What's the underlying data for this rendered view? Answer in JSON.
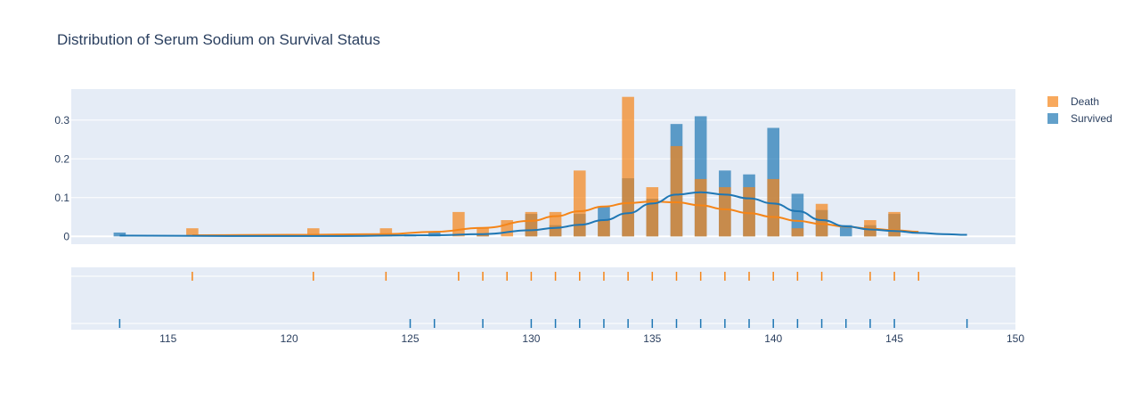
{
  "chart_data": {
    "type": "histogram",
    "title": "Distribution of Serum Sodium on Survival Status",
    "xlabel": "",
    "ylabel": "",
    "xlim": [
      111,
      150
    ],
    "ylim": [
      -0.02,
      0.38
    ],
    "x_ticks": [
      115,
      120,
      125,
      130,
      135,
      140,
      145,
      150
    ],
    "y_ticks": [
      0,
      0.1,
      0.2,
      0.3
    ],
    "y_tick_labels": [
      "0",
      "0.1",
      "0.2",
      "0.3"
    ],
    "grid": true,
    "legend_position": "top-right",
    "background_color": "#E5ECF6",
    "series": [
      {
        "name": "Death",
        "color": "#F58518",
        "histogram": {
          "x": [
            116,
            121,
            124,
            127,
            128,
            129,
            130,
            131,
            132,
            133,
            134,
            135,
            136,
            137,
            138,
            139,
            140,
            141,
            142,
            144,
            145
          ],
          "y": [
            0.021,
            0.021,
            0.021,
            0.063,
            0.021,
            0.042,
            0.063,
            0.063,
            0.17,
            0.042,
            0.36,
            0.127,
            0.233,
            0.148,
            0.127,
            0.127,
            0.148,
            0.021,
            0.084,
            0.042,
            0.063
          ]
        },
        "kde": {
          "x": [
            116,
            120,
            124,
            126,
            128,
            130,
            131,
            132,
            133,
            134,
            135,
            136,
            137,
            138,
            139,
            140,
            141,
            142,
            143,
            144,
            145,
            146
          ],
          "y": [
            0.003,
            0.004,
            0.006,
            0.012,
            0.022,
            0.04,
            0.052,
            0.065,
            0.077,
            0.086,
            0.09,
            0.088,
            0.08,
            0.07,
            0.06,
            0.05,
            0.04,
            0.032,
            0.025,
            0.02,
            0.016,
            0.012
          ]
        },
        "rug": [
          116,
          121,
          124,
          127,
          128,
          129,
          130,
          131,
          132,
          133,
          134,
          135,
          136,
          137,
          138,
          139,
          140,
          141,
          142,
          144,
          145,
          146
        ]
      },
      {
        "name": "Survived",
        "color": "#1F77B4",
        "histogram": {
          "x": [
            113,
            125,
            126,
            128,
            130,
            131,
            132,
            133,
            134,
            135,
            136,
            137,
            138,
            139,
            140,
            141,
            142,
            143,
            144,
            145
          ],
          "y": [
            0.01,
            0.005,
            0.01,
            0.005,
            0.058,
            0.029,
            0.058,
            0.078,
            0.15,
            0.097,
            0.29,
            0.31,
            0.17,
            0.16,
            0.28,
            0.11,
            0.068,
            0.029,
            0.029,
            0.058
          ]
        },
        "kde": {
          "x": [
            113,
            118,
            122,
            126,
            128,
            130,
            131,
            132,
            133,
            134,
            135,
            136,
            137,
            138,
            139,
            140,
            141,
            142,
            143,
            144,
            145,
            146,
            147,
            148
          ],
          "y": [
            0.002,
            0.001,
            0.001,
            0.003,
            0.006,
            0.016,
            0.022,
            0.03,
            0.042,
            0.06,
            0.085,
            0.108,
            0.114,
            0.108,
            0.098,
            0.085,
            0.065,
            0.042,
            0.026,
            0.018,
            0.014,
            0.009,
            0.006,
            0.004
          ]
        },
        "rug": [
          113,
          125,
          126,
          128,
          130,
          131,
          132,
          133,
          134,
          135,
          136,
          137,
          138,
          139,
          140,
          141,
          142,
          143,
          144,
          145,
          148
        ]
      }
    ]
  }
}
